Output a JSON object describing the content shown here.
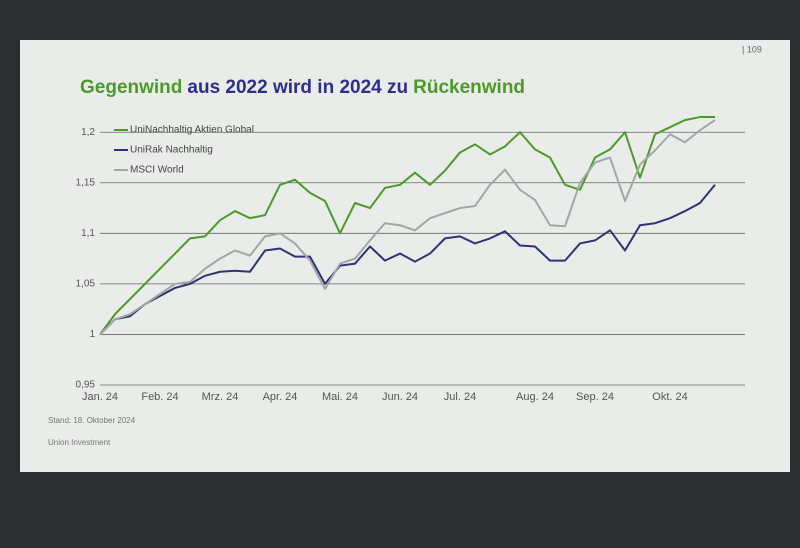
{
  "page_number": "| 109",
  "chart_data": {
    "type": "line",
    "title_parts": [
      {
        "text": "Gegenwind",
        "color": "#4c9a2a"
      },
      {
        "text": "aus 2022 wird in 2024 zu",
        "color": "#2e2f8a"
      },
      {
        "text": "Rückenwind",
        "color": "#4c9a2a"
      }
    ],
    "categories": [
      "Jan. 24",
      null,
      null,
      null,
      "Feb. 24",
      null,
      null,
      null,
      "Mrz. 24",
      null,
      null,
      null,
      "Apr. 24",
      null,
      null,
      null,
      "Mai. 24",
      null,
      null,
      null,
      "Jun. 24",
      null,
      null,
      null,
      "Jul. 24",
      null,
      null,
      null,
      null,
      "Aug. 24",
      null,
      null,
      null,
      "Sep. 24",
      null,
      null,
      null,
      null,
      "Okt. 24",
      null,
      null,
      null
    ],
    "series": [
      {
        "name": "UniNachhaltig Aktien Global",
        "color": "#4c9a2a",
        "values": [
          1.0,
          1.02,
          1.035,
          1.05,
          1.065,
          1.08,
          1.095,
          1.097,
          1.113,
          1.122,
          1.115,
          1.118,
          1.148,
          1.153,
          1.14,
          1.132,
          1.1,
          1.13,
          1.125,
          1.145,
          1.148,
          1.16,
          1.148,
          1.162,
          1.18,
          1.188,
          1.178,
          1.186,
          1.2,
          1.183,
          1.175,
          1.148,
          1.143,
          1.175,
          1.183,
          1.2,
          1.155,
          1.198,
          1.205,
          1.212,
          1.215,
          1.215
        ]
      },
      {
        "name": "UniRak Nachhaltig",
        "color": "#2e3574",
        "values": [
          1.0,
          1.015,
          1.018,
          1.03,
          1.038,
          1.046,
          1.05,
          1.058,
          1.062,
          1.063,
          1.062,
          1.083,
          1.085,
          1.077,
          1.077,
          1.05,
          1.068,
          1.07,
          1.087,
          1.073,
          1.08,
          1.072,
          1.08,
          1.095,
          1.097,
          1.09,
          1.095,
          1.102,
          1.088,
          1.087,
          1.073,
          1.073,
          1.09,
          1.093,
          1.103,
          1.083,
          1.108,
          1.11,
          1.115,
          1.122,
          1.13,
          1.148
        ]
      },
      {
        "name": "MSCI World",
        "color": "#a3a8a6",
        "values": [
          1.0,
          1.015,
          1.02,
          1.03,
          1.04,
          1.05,
          1.052,
          1.065,
          1.075,
          1.083,
          1.078,
          1.097,
          1.1,
          1.09,
          1.073,
          1.045,
          1.07,
          1.075,
          1.093,
          1.11,
          1.108,
          1.103,
          1.115,
          1.12,
          1.125,
          1.127,
          1.148,
          1.163,
          1.143,
          1.133,
          1.108,
          1.107,
          1.15,
          1.17,
          1.175,
          1.132,
          1.168,
          1.182,
          1.198,
          1.19,
          1.202,
          1.212
        ]
      }
    ],
    "ylim": [
      0.95,
      1.22
    ],
    "yticks": [
      {
        "value": 0.95,
        "label": "0,95"
      },
      1,
      {
        "value": 1.05,
        "label": "1,05"
      },
      {
        "value": 1.1,
        "label": "1,1"
      },
      {
        "value": 1.15,
        "label": "1,15"
      },
      {
        "value": 1.2,
        "label": "1,2"
      }
    ],
    "grid": true,
    "legend": "top-left",
    "source_note": "Stand: 18. Oktober 2024",
    "footer": "Union Investment"
  }
}
